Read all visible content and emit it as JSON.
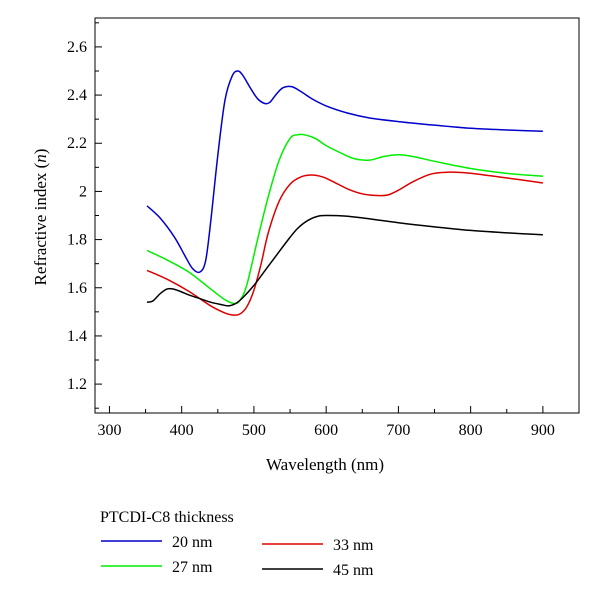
{
  "chart_data": {
    "type": "line",
    "xlabel": "Wavelength (nm)",
    "ylabel_prefix": "Refractive index (",
    "ylabel_var": "n",
    "ylabel_suffix": ")",
    "xlim": [
      280,
      950
    ],
    "ylim": [
      1.08,
      2.72
    ],
    "xticks": [
      300,
      400,
      500,
      600,
      700,
      800,
      900
    ],
    "yticks": [
      1.2,
      1.4,
      1.6,
      1.8,
      2,
      2.2,
      2.4,
      2.6
    ],
    "xtick_labels": [
      "300",
      "400",
      "500",
      "600",
      "700",
      "800",
      "900"
    ],
    "ytick_labels": [
      "1.2",
      "1.4",
      "1.6",
      "1.8",
      "2",
      "2.2",
      "2.4",
      "2.6"
    ],
    "grid": false,
    "legend_title": "PTCDI-C8 thickness",
    "legend_position": "below",
    "series": [
      {
        "name": "20 nm",
        "color": "#0000cc",
        "x": [
          352,
          370,
          390,
          405,
          415,
          425,
          433,
          440,
          450,
          460,
          470,
          478,
          485,
          495,
          505,
          515,
          522,
          530,
          540,
          552,
          565,
          580,
          600,
          630,
          660,
          700,
          750,
          800,
          850,
          900
        ],
        "y": [
          1.94,
          1.89,
          1.81,
          1.73,
          1.68,
          1.665,
          1.71,
          1.87,
          2.15,
          2.38,
          2.48,
          2.5,
          2.48,
          2.43,
          2.385,
          2.365,
          2.37,
          2.4,
          2.43,
          2.435,
          2.415,
          2.385,
          2.355,
          2.325,
          2.305,
          2.29,
          2.275,
          2.262,
          2.255,
          2.25
        ]
      },
      {
        "name": "27 nm",
        "color": "#00ee00",
        "x": [
          352,
          380,
          410,
          440,
          460,
          472,
          480,
          490,
          505,
          520,
          535,
          550,
          560,
          570,
          585,
          600,
          620,
          640,
          660,
          680,
          700,
          720,
          750,
          800,
          850,
          900
        ],
        "y": [
          1.755,
          1.715,
          1.665,
          1.595,
          1.55,
          1.535,
          1.545,
          1.61,
          1.8,
          1.98,
          2.13,
          2.22,
          2.235,
          2.235,
          2.22,
          2.19,
          2.16,
          2.135,
          2.13,
          2.145,
          2.152,
          2.145,
          2.125,
          2.095,
          2.075,
          2.063
        ]
      },
      {
        "name": "33 nm",
        "color": "#dd0000",
        "x": [
          352,
          380,
          410,
          440,
          460,
          470,
          480,
          490,
          500,
          510,
          520,
          535,
          550,
          565,
          580,
          595,
          610,
          630,
          650,
          670,
          685,
          700,
          720,
          745,
          770,
          790,
          810,
          840,
          870,
          900
        ],
        "y": [
          1.672,
          1.635,
          1.585,
          1.525,
          1.495,
          1.487,
          1.49,
          1.52,
          1.59,
          1.7,
          1.83,
          1.96,
          2.03,
          2.06,
          2.068,
          2.06,
          2.04,
          2.01,
          1.99,
          1.983,
          1.985,
          2.005,
          2.04,
          2.072,
          2.08,
          2.078,
          2.072,
          2.06,
          2.048,
          2.035
        ]
      },
      {
        "name": "45 nm",
        "color": "#000000",
        "x": [
          352,
          360,
          370,
          380,
          388,
          398,
          410,
          425,
          440,
          455,
          465,
          475,
          485,
          500,
          515,
          530,
          545,
          560,
          575,
          590,
          605,
          625,
          650,
          700,
          750,
          800,
          850,
          900
        ],
        "y": [
          1.54,
          1.545,
          1.575,
          1.595,
          1.595,
          1.585,
          1.57,
          1.555,
          1.54,
          1.53,
          1.525,
          1.535,
          1.56,
          1.61,
          1.67,
          1.73,
          1.79,
          1.845,
          1.88,
          1.898,
          1.9,
          1.898,
          1.89,
          1.87,
          1.853,
          1.838,
          1.828,
          1.82
        ]
      }
    ]
  }
}
